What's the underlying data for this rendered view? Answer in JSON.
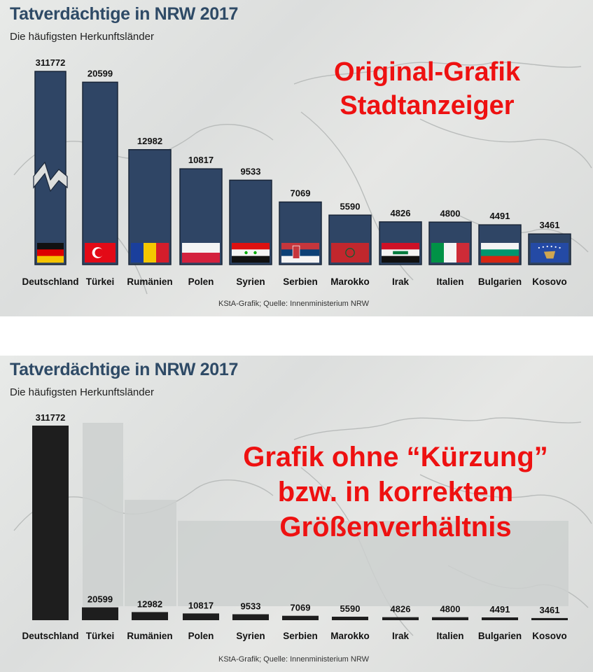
{
  "panels": [
    {
      "title": "Tatverdächtige in NRW 2017",
      "subtitle": "Die häufigsten Herkunftsländer",
      "overlay_lines": [
        "Original-Grafik",
        "Stadtanzeiger"
      ],
      "source": "KStA-Grafik; Quelle: Innenministerium NRW"
    },
    {
      "title": "Tatverdächtige in NRW 2017",
      "subtitle": "Die häufigsten Herkunftsländer",
      "overlay_lines": [
        "Grafik ohne “Kürzung”",
        "bzw. in korrektem",
        "Größenverhältnis"
      ],
      "source": "KStA-Grafik; Quelle: Innenministerium NRW"
    }
  ],
  "chart_data": [
    {
      "type": "bar",
      "title": "Tatverdächtige in NRW 2017",
      "subtitle": "Die häufigsten Herkunftsländer",
      "categories": [
        "Deutschland",
        "Türkei",
        "Rumänien",
        "Polen",
        "Syrien",
        "Serbien",
        "Marokko",
        "Irak",
        "Italien",
        "Bulgarien",
        "Kosovo"
      ],
      "values": [
        311772,
        20599,
        12982,
        10817,
        9533,
        7069,
        5590,
        4826,
        4800,
        4491,
        3461
      ],
      "value_labels": [
        "311772",
        "20599",
        "12982",
        "10817",
        "9533",
        "7069",
        "5590",
        "4826",
        "4800",
        "4491",
        "3461"
      ],
      "axis_break": true,
      "broken_bar_index": 0,
      "ylim": [
        0,
        21500
      ],
      "bar_color": "#2f4565",
      "flag_icons": [
        "germany-flag-icon",
        "turkey-flag-icon",
        "romania-flag-icon",
        "poland-flag-icon",
        "syria-flag-icon",
        "serbia-flag-icon",
        "morocco-flag-icon",
        "iraq-flag-icon",
        "italy-flag-icon",
        "bulgaria-flag-icon",
        "kosovo-flag-icon"
      ]
    },
    {
      "type": "bar",
      "title": "Tatverdächtige in NRW 2017",
      "subtitle": "Die häufigsten Herkunftsländer",
      "categories": [
        "Deutschland",
        "Türkei",
        "Rumänien",
        "Polen",
        "Syrien",
        "Serbien",
        "Marokko",
        "Irak",
        "Italien",
        "Bulgarien",
        "Kosovo"
      ],
      "values": [
        311772,
        20599,
        12982,
        10817,
        9533,
        7069,
        5590,
        4826,
        4800,
        4491,
        3461
      ],
      "value_labels": [
        "311772",
        "20599",
        "12982",
        "10817",
        "9533",
        "7069",
        "5590",
        "4826",
        "4800",
        "4491",
        "3461"
      ],
      "axis_break": false,
      "ylim": [
        0,
        311772
      ],
      "bar_color": "#1e1e1e"
    }
  ],
  "colors": {
    "title": "#2e4a66",
    "overlay": "#ee1111",
    "bar_top": "#2f4565",
    "bar_bottom": "#1e1e1e"
  }
}
